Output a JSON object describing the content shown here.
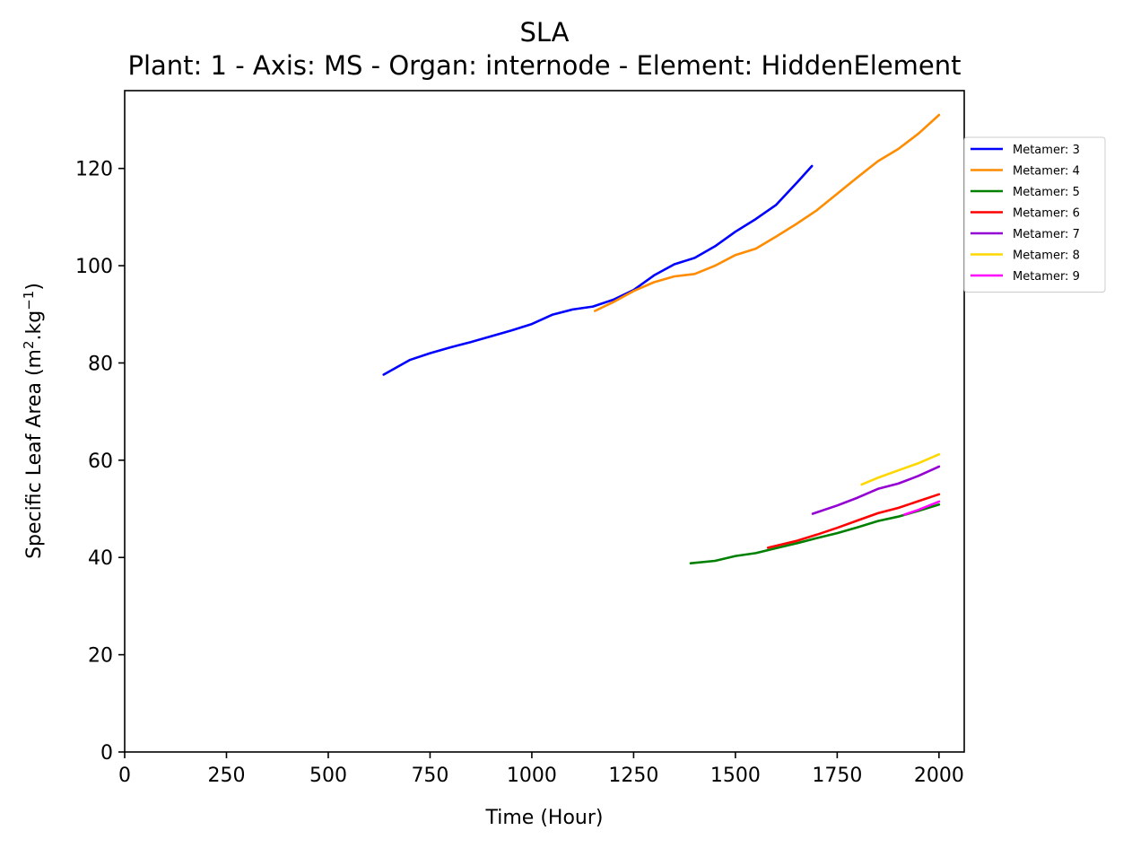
{
  "chart_data": {
    "type": "line",
    "title": "SLA",
    "subtitle": "Plant: 1 - Axis: MS - Organ: internode - Element: HiddenElement",
    "xlabel": "Time (Hour)",
    "ylabel": "Specific Leaf Area (m²·kg⁻¹)",
    "ylabel_main": "Specific Leaf Area (m",
    "ylabel_sup1": "2",
    "ylabel_mid": ".kg",
    "ylabel_sup2": "−1",
    "ylabel_end": ")",
    "xlim": [
      0,
      2062
    ],
    "ylim": [
      0,
      136
    ],
    "xticks": [
      0,
      250,
      500,
      750,
      1000,
      1250,
      1500,
      1750,
      2000
    ],
    "yticks": [
      0,
      20,
      40,
      60,
      80,
      100,
      120
    ],
    "grid": false,
    "legend_position": "right, outside plot",
    "series": [
      {
        "name": "Metamer: 3",
        "color": "#0000ff",
        "x": [
          636,
          700,
          750,
          800,
          850,
          900,
          950,
          1000,
          1050,
          1100,
          1150,
          1200,
          1250,
          1300,
          1350,
          1400,
          1450,
          1500,
          1550,
          1600,
          1650,
          1688
        ],
        "y": [
          77.6,
          80.6,
          82.0,
          83.2,
          84.3,
          85.5,
          86.7,
          88.0,
          89.9,
          91.0,
          91.6,
          93.0,
          95.0,
          98.0,
          100.3,
          101.6,
          104.0,
          107.0,
          109.6,
          112.5,
          117.0,
          120.5
        ]
      },
      {
        "name": "Metamer: 4",
        "color": "#ff8c00",
        "x": [
          1155,
          1200,
          1250,
          1300,
          1350,
          1400,
          1450,
          1500,
          1550,
          1600,
          1650,
          1700,
          1750,
          1800,
          1850,
          1900,
          1950,
          2000
        ],
        "y": [
          90.7,
          92.5,
          94.8,
          96.6,
          97.8,
          98.3,
          100.0,
          102.2,
          103.5,
          106.0,
          108.6,
          111.4,
          114.8,
          118.2,
          121.5,
          124.0,
          127.2,
          131.0
        ]
      },
      {
        "name": "Metamer: 5",
        "color": "#008000",
        "x": [
          1390,
          1450,
          1500,
          1550,
          1600,
          1650,
          1700,
          1750,
          1800,
          1850,
          1900,
          1950,
          2000
        ],
        "y": [
          38.8,
          39.3,
          40.3,
          40.9,
          41.9,
          42.9,
          44.0,
          45.0,
          46.2,
          47.5,
          48.4,
          49.6,
          50.9
        ]
      },
      {
        "name": "Metamer: 6",
        "color": "#ff0000",
        "x": [
          1580,
          1650,
          1700,
          1750,
          1800,
          1850,
          1900,
          1950,
          2000
        ],
        "y": [
          42.0,
          43.4,
          44.7,
          46.1,
          47.6,
          49.1,
          50.2,
          51.6,
          53.0
        ]
      },
      {
        "name": "Metamer: 7",
        "color": "#9400d3",
        "x": [
          1690,
          1750,
          1800,
          1850,
          1900,
          1950,
          2000
        ],
        "y": [
          49.0,
          50.7,
          52.3,
          54.1,
          55.2,
          56.8,
          58.7
        ]
      },
      {
        "name": "Metamer: 8",
        "color": "#ffd700",
        "x": [
          1810,
          1850,
          1900,
          1950,
          2000
        ],
        "y": [
          55.0,
          56.4,
          57.9,
          59.4,
          61.2
        ]
      },
      {
        "name": "Metamer: 9",
        "color": "#ff00ff",
        "x": [
          1915,
          1950,
          2000
        ],
        "y": [
          48.8,
          49.8,
          51.5
        ]
      }
    ]
  }
}
